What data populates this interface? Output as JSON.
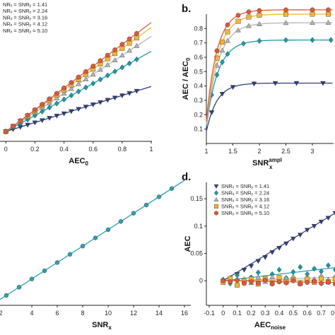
{
  "colors": {
    "s141": "#2f3f7a",
    "s224": "#1a9aa6",
    "s316": "#b5b5b5",
    "s412": "#f2b632",
    "s510": "#dc5a3a",
    "line_c": "#2e9fb2"
  },
  "chart_data": [
    {
      "id": "a",
      "type": "line",
      "panel_label": "",
      "xlabel": "AEC",
      "xlabel_sub": "0",
      "xlim": [
        -0.05,
        1.0
      ],
      "ylim": [
        -0.05,
        1.05
      ],
      "x_ticks": [
        "0",
        "0.2",
        "0.4",
        "0.6",
        "0.8",
        "1"
      ],
      "legend": [
        "NRₓ = SNRᵧ = 1.41",
        "NRₓ = SNRᵧ = 2.24",
        "NRₓ = SNRᵧ = 3.16",
        "NRₓ = SNRᵧ = 4.12",
        "NRₓ = SNRᵧ = 5.10"
      ],
      "series": [
        {
          "marker": "tri_down",
          "color": "s141",
          "x": [
            0,
            0.05,
            0.1,
            0.15,
            0.2,
            0.25,
            0.3,
            0.35,
            0.4,
            0.45,
            0.5,
            0.55,
            0.6,
            0.65,
            0.7,
            0.75,
            0.8,
            0.85,
            0.9
          ],
          "slope": 0.36
        },
        {
          "marker": "diamond",
          "color": "s224",
          "x": [
            0,
            0.05,
            0.1,
            0.15,
            0.2,
            0.25,
            0.3,
            0.35,
            0.4,
            0.45,
            0.5,
            0.55,
            0.6,
            0.65,
            0.7,
            0.75,
            0.8,
            0.85,
            0.9
          ],
          "slope": 0.64
        },
        {
          "marker": "tri_up",
          "color": "s316",
          "x": [
            0,
            0.05,
            0.1,
            0.15,
            0.2,
            0.25,
            0.3,
            0.35,
            0.4,
            0.45,
            0.5,
            0.55,
            0.6,
            0.65,
            0.7,
            0.75,
            0.8,
            0.85,
            0.9
          ],
          "slope": 0.76
        },
        {
          "marker": "square",
          "color": "s412",
          "x": [
            0,
            0.05,
            0.1,
            0.15,
            0.2,
            0.25,
            0.3,
            0.35,
            0.4,
            0.45,
            0.5,
            0.55,
            0.6,
            0.65,
            0.7,
            0.75,
            0.8,
            0.85,
            0.9
          ],
          "slope": 0.83
        },
        {
          "marker": "circle",
          "color": "s510",
          "x": [
            0,
            0.05,
            0.1,
            0.15,
            0.2,
            0.25,
            0.3,
            0.35,
            0.4,
            0.45,
            0.5,
            0.55,
            0.6,
            0.65,
            0.7,
            0.75,
            0.8,
            0.85,
            0.9
          ],
          "slope": 0.87
        }
      ]
    },
    {
      "id": "b",
      "type": "line",
      "panel_label": "b.",
      "xlabel": "SNR",
      "xlabel_sub": "x",
      "xlabel_sup": "ampl",
      "ylabel": "AEC / AEC",
      "ylabel_sub": "0",
      "xlim": [
        1,
        3.4
      ],
      "ylim": [
        0,
        0.9
      ],
      "x_ticks": [
        "1",
        "1.5",
        "2",
        "2.5",
        "3"
      ],
      "y_ticks": [
        "0.1",
        "0.2",
        "0.3",
        "0.4",
        "0.5",
        "0.6",
        "0.7",
        "0.8"
      ],
      "x": [
        1.0,
        1.1,
        1.2,
        1.3,
        1.4,
        1.5,
        1.6,
        1.7,
        1.8,
        1.9,
        2.0,
        2.2,
        2.4,
        2.6,
        2.8,
        3.0,
        3.2,
        3.4
      ],
      "series": [
        {
          "marker": "tri_down",
          "color": "s141",
          "asym": 0.39,
          "k": 0.2,
          "x": [
            1.1,
            1.3,
            1.5,
            1.9,
            2.3,
            2.7,
            3.2
          ]
        },
        {
          "marker": "diamond",
          "color": "s224",
          "asym": 0.69,
          "k": 0.22,
          "x": [
            1.1,
            1.2,
            1.3,
            1.4,
            1.7,
            2.0,
            2.5,
            3.0,
            3.35
          ]
        },
        {
          "marker": "tri_up",
          "color": "s316",
          "asym": 0.81,
          "k": 0.23,
          "x": [
            1.2,
            1.3,
            1.4,
            1.6,
            1.8,
            2.0,
            2.5,
            3.0,
            3.3
          ]
        },
        {
          "marker": "square",
          "color": "s412",
          "asym": 0.87,
          "k": 0.22,
          "x": [
            1.2,
            1.3,
            1.4,
            1.6,
            1.8,
            2.0,
            2.5,
            3.0,
            3.3
          ]
        },
        {
          "marker": "circle",
          "color": "s510",
          "asym": 0.9,
          "k": 0.2,
          "x": [
            1.2,
            1.4,
            1.6,
            1.8,
            2.0,
            2.5,
            3.0,
            3.3
          ]
        }
      ]
    },
    {
      "id": "c",
      "type": "line",
      "panel_label": "",
      "xlabel": "SNR",
      "xlabel_sub": "x",
      "xlim": [
        1.5,
        16.5
      ],
      "ylim": [
        0,
        1
      ],
      "x_ticks": [
        "4",
        "6",
        "8",
        "10",
        "12",
        "14",
        "16"
      ],
      "x_tick_vals": [
        4,
        6,
        8,
        10,
        12,
        14,
        16
      ],
      "x_partial_tick": "2",
      "color": "line_c",
      "points_x": [
        2,
        3,
        4,
        5,
        6,
        7,
        8,
        9,
        10,
        11,
        12,
        13,
        14,
        15
      ],
      "line_x": [
        1.5,
        16
      ]
    },
    {
      "id": "d",
      "type": "scatter",
      "panel_label": "d.",
      "xlabel": "AEC",
      "xlabel_sub": "noise",
      "ylabel": "AEC",
      "xlim": [
        -0.12,
        1.0
      ],
      "ylim": [
        -0.045,
        0.18
      ],
      "x_ticks": [
        "-0.1",
        "0",
        "0.1",
        "0.2",
        "0.3",
        "0.4",
        "0.5",
        "0.6",
        "0.7",
        "0.8"
      ],
      "x_tick_vals": [
        -0.1,
        0,
        0.1,
        0.2,
        0.3,
        0.4,
        0.5,
        0.6,
        0.7,
        0.8
      ],
      "y_ticks": [
        "0",
        "0.05",
        "0.1",
        "0.15"
      ],
      "y_tick_vals": [
        0,
        0.05,
        0.1,
        0.15
      ],
      "legend": [
        "SNRₓ = SNRᵧ = 1.41",
        "SNRₓ = SNRᵧ = 2.24",
        "SNRₓ = SNRᵧ = 3.16",
        "SNRₓ = SNRᵧ = 4.12",
        "SNRₓ = SNRᵧ = 5.10"
      ],
      "series": [
        {
          "marker": "tri_down",
          "color": "s141",
          "slope": 0.155,
          "points": [
            [
              0,
              0
            ],
            [
              0.05,
              0.004
            ],
            [
              0.1,
              0.012
            ],
            [
              0.15,
              0.02
            ],
            [
              0.2,
              0.027
            ],
            [
              0.25,
              0.036
            ],
            [
              0.3,
              0.043
            ],
            [
              0.35,
              0.052
            ],
            [
              0.4,
              0.06
            ],
            [
              0.45,
              0.068
            ],
            [
              0.5,
              0.077
            ],
            [
              0.55,
              0.084
            ],
            [
              0.6,
              0.093
            ],
            [
              0.65,
              0.1
            ],
            [
              0.7,
              0.108
            ],
            [
              0.75,
              0.115
            ],
            [
              0.8,
              0.124
            ],
            [
              0.85,
              0.13
            ],
            [
              0.9,
              0.14
            ]
          ]
        },
        {
          "marker": "diamond",
          "color": "s224",
          "slope": 0.03,
          "points": [
            [
              0,
              0.002
            ],
            [
              0.05,
              -0.005
            ],
            [
              0.1,
              0.01
            ],
            [
              0.15,
              -0.002
            ],
            [
              0.2,
              0.006
            ],
            [
              0.25,
              0.015
            ],
            [
              0.3,
              0.003
            ],
            [
              0.35,
              0.012
            ],
            [
              0.4,
              0.02
            ],
            [
              0.45,
              0.005
            ],
            [
              0.5,
              0.016
            ],
            [
              0.55,
              0.025
            ],
            [
              0.6,
              0.012
            ],
            [
              0.65,
              0.022
            ],
            [
              0.7,
              0.017
            ],
            [
              0.75,
              0.028
            ],
            [
              0.8,
              0.02
            ],
            [
              0.85,
              0.027
            ],
            [
              0.9,
              0.025
            ]
          ]
        },
        {
          "marker": "tri_up",
          "color": "s316",
          "slope": 0.008,
          "points": [
            [
              0,
              0
            ],
            [
              0.05,
              0.005
            ],
            [
              0.1,
              -0.005
            ],
            [
              0.15,
              0.003
            ],
            [
              0.2,
              -0.004
            ],
            [
              0.25,
              0.006
            ],
            [
              0.3,
              -0.002
            ],
            [
              0.35,
              0.007
            ],
            [
              0.4,
              0.0
            ],
            [
              0.45,
              0.005
            ],
            [
              0.5,
              0.008
            ],
            [
              0.55,
              -0.003
            ],
            [
              0.6,
              0.006
            ],
            [
              0.65,
              0.003
            ],
            [
              0.7,
              0.009
            ],
            [
              0.75,
              0.002
            ],
            [
              0.8,
              0.008
            ],
            [
              0.85,
              0.004
            ],
            [
              0.9,
              0.006
            ]
          ]
        },
        {
          "marker": "square",
          "color": "s412",
          "slope": 0.002,
          "points": [
            [
              0,
              -0.003
            ],
            [
              0.05,
              0.004
            ],
            [
              0.1,
              -0.008
            ],
            [
              0.15,
              -0.001
            ],
            [
              0.2,
              0.003
            ],
            [
              0.25,
              -0.006
            ],
            [
              0.3,
              0.004
            ],
            [
              0.35,
              -0.004
            ],
            [
              0.4,
              0.006
            ],
            [
              0.45,
              -0.002
            ],
            [
              0.5,
              0.002
            ],
            [
              0.55,
              -0.005
            ],
            [
              0.6,
              0.003
            ],
            [
              0.65,
              -0.003
            ],
            [
              0.7,
              0.004
            ],
            [
              0.75,
              -0.002
            ],
            [
              0.8,
              0.003
            ],
            [
              0.85,
              -0.004
            ],
            [
              0.9,
              0.002
            ]
          ]
        },
        {
          "marker": "circle",
          "color": "s510",
          "slope": -0.004,
          "points": [
            [
              0,
              0
            ],
            [
              0.05,
              -0.002
            ],
            [
              0.1,
              0.001
            ],
            [
              0.15,
              -0.005
            ],
            [
              0.2,
              -0.002
            ],
            [
              0.25,
              -0.004
            ],
            [
              0.3,
              0.001
            ],
            [
              0.35,
              -0.006
            ],
            [
              0.4,
              -0.002
            ],
            [
              0.45,
              -0.004
            ],
            [
              0.5,
              0.0
            ],
            [
              0.55,
              -0.006
            ],
            [
              0.6,
              -0.003
            ],
            [
              0.65,
              -0.001
            ],
            [
              0.7,
              -0.005
            ],
            [
              0.75,
              -0.003
            ],
            [
              0.8,
              -0.006
            ],
            [
              0.85,
              -0.002
            ],
            [
              0.9,
              -0.004
            ]
          ]
        }
      ]
    }
  ]
}
